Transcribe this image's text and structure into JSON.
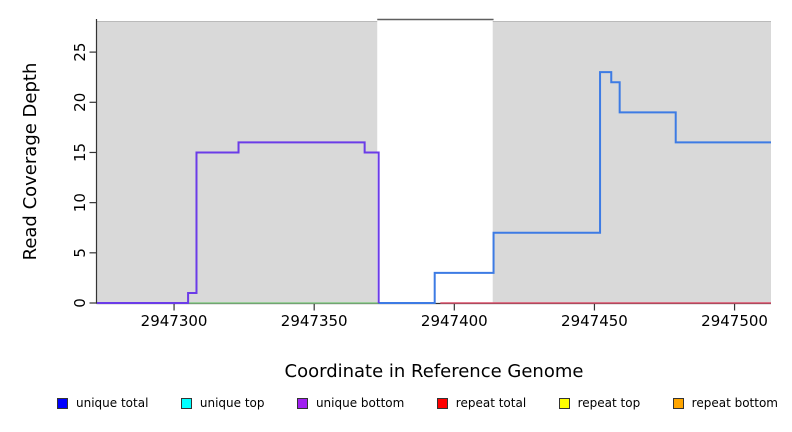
{
  "chart_data": {
    "type": "line",
    "subtype": "step-coverage",
    "title": "",
    "xlabel": "Coordinate in Reference Genome",
    "ylabel": "Read Coverage Depth",
    "xlim": [
      2947272.5,
      2947513
    ],
    "ylim": [
      0,
      28.2
    ],
    "x_ticks": [
      2947300,
      2947350,
      2947400,
      2947450,
      2947500
    ],
    "y_ticks": [
      0,
      5,
      10,
      15,
      20,
      25
    ],
    "grid": false,
    "shaded_regions": [
      {
        "name": "shaded-region-left",
        "from": 2947272.5,
        "to": 2947372.5,
        "color": "#d9d9d9"
      },
      {
        "name": "shaded-region-right",
        "from": 2947413.7,
        "to": 2947513,
        "color": "#d9d9d9"
      }
    ],
    "gap_top_line": {
      "from": 2947372.5,
      "to": 2947414,
      "color": "#5f5f5f"
    },
    "series": [
      {
        "name": "zero-baseline-green",
        "color": "#86c986",
        "width": 1.5,
        "end_at_zero": false,
        "steps": [
          {
            "from": 2947305,
            "to": 2947373,
            "depth": 0
          }
        ]
      },
      {
        "name": "repeat total",
        "color": "#d9506a",
        "width": 1.5,
        "end_at_zero": false,
        "steps": [
          {
            "from": 2947395,
            "to": 2947513,
            "depth": 0
          }
        ]
      },
      {
        "name": "unique total",
        "color": "#3d7be4",
        "width": 2,
        "end_at_zero": false,
        "steps": [
          {
            "from": 2947373,
            "to": 2947393,
            "depth": 0
          },
          {
            "from": 2947393,
            "to": 2947414,
            "depth": 3
          },
          {
            "from": 2947414,
            "to": 2947452,
            "depth": 7
          },
          {
            "from": 2947452,
            "to": 2947456,
            "depth": 23
          },
          {
            "from": 2947456,
            "to": 2947459,
            "depth": 22
          },
          {
            "from": 2947459,
            "to": 2947479,
            "depth": 19
          },
          {
            "from": 2947479,
            "to": 2947513,
            "depth": 16
          }
        ]
      },
      {
        "name": "unique bottom",
        "color": "#6b3ce8",
        "width": 2,
        "end_at_zero": true,
        "steps": [
          {
            "from": 2947272.5,
            "to": 2947305,
            "depth": 0
          },
          {
            "from": 2947305,
            "to": 2947308,
            "depth": 1
          },
          {
            "from": 2947308,
            "to": 2947323,
            "depth": 15
          },
          {
            "from": 2947323,
            "to": 2947368,
            "depth": 16
          },
          {
            "from": 2947368,
            "to": 2947373,
            "depth": 15
          }
        ]
      }
    ],
    "axis_color": "#333333",
    "text_color": "#000000"
  },
  "legend": {
    "items": [
      {
        "label": "unique total",
        "color": "#0000ff"
      },
      {
        "label": "unique top",
        "color": "#00ffff"
      },
      {
        "label": "unique bottom",
        "color": "#a020f0"
      },
      {
        "label": "repeat total",
        "color": "#ff0000"
      },
      {
        "label": "repeat top",
        "color": "#ffff00"
      },
      {
        "label": "repeat bottom",
        "color": "#ffa500"
      }
    ]
  }
}
